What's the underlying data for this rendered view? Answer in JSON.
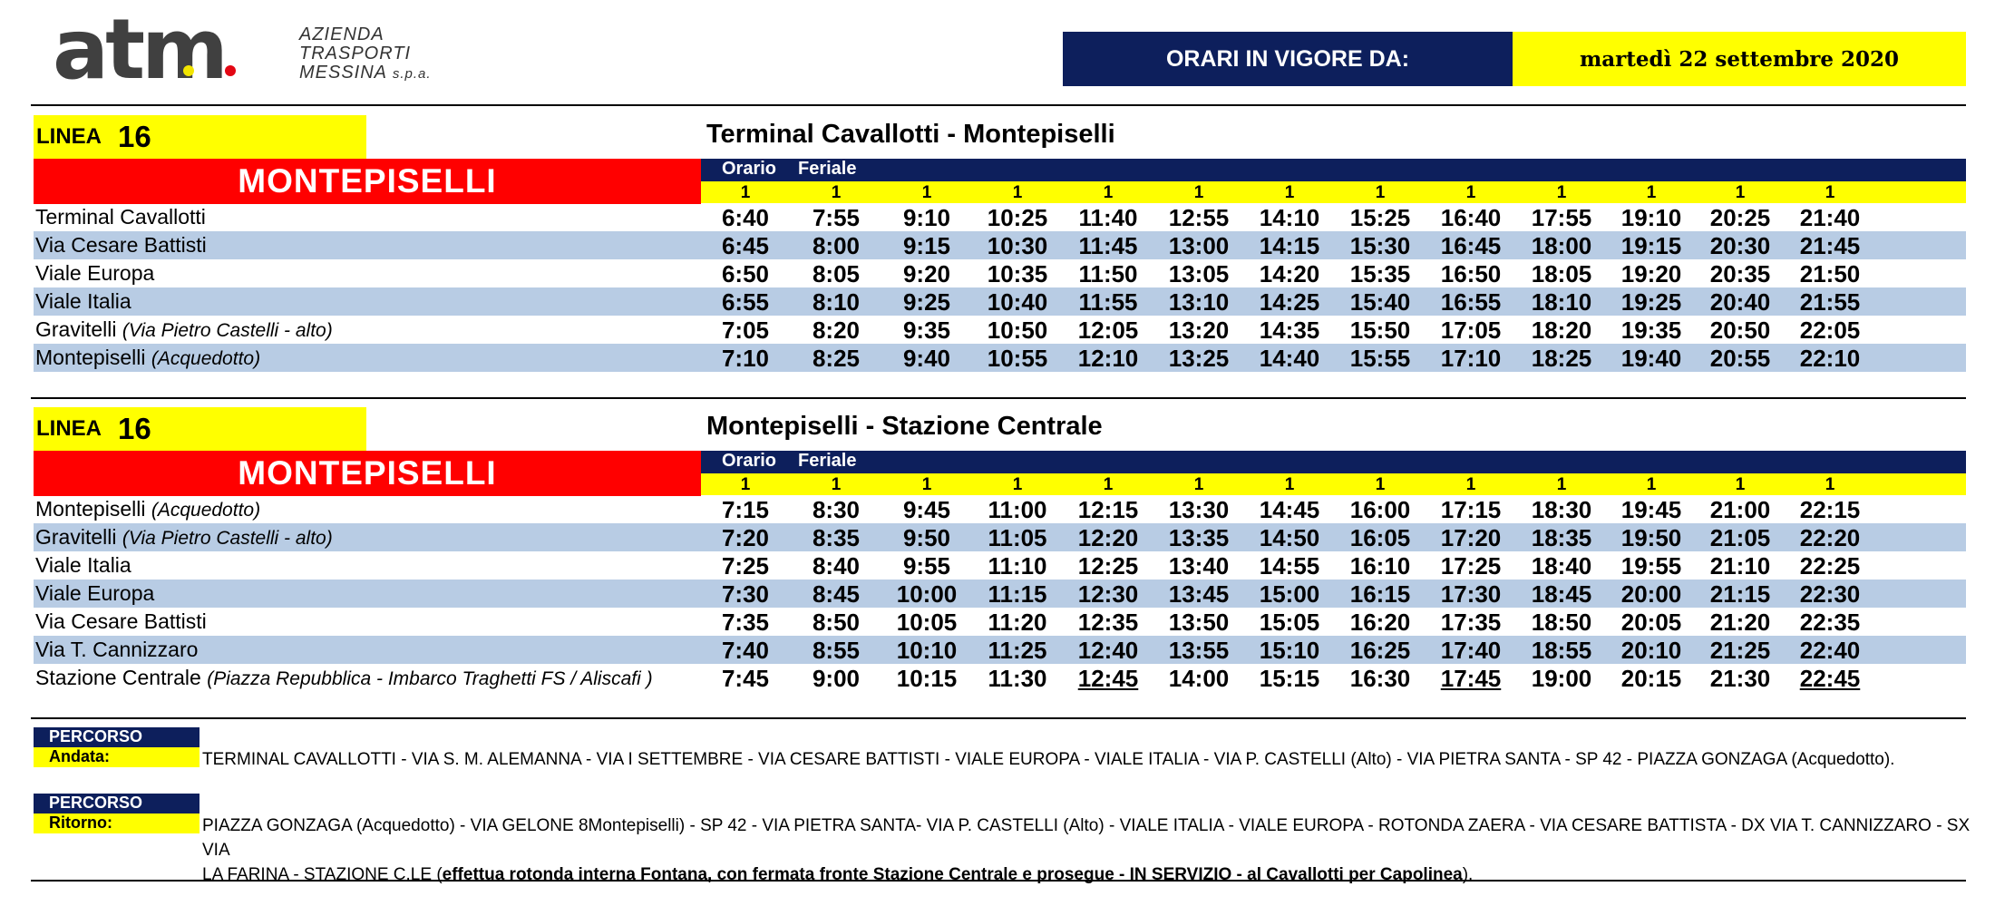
{
  "header": {
    "logo_word": "atm",
    "company_line1": "AZIENDA",
    "company_line2": "TRASPORTI",
    "company_line3": "MESSINA",
    "company_suffix": "s.p.a.",
    "validity_label": "ORARI IN VIGORE DA:",
    "validity_date": "martedì 22 settembre 2020",
    "colors": {
      "navy": "#0d1f5c",
      "yellow": "#ffff00",
      "red": "#ff0000",
      "row_alt": "#b8cce4"
    }
  },
  "sections": [
    {
      "linea_label": "LINEA",
      "linea_number": "16",
      "route_title": "Terminal Cavallotti - Montepiselli",
      "destination": "MONTEPISELLI",
      "orario_label": "Orario",
      "feriale_label": "Feriale",
      "trip_notes": [
        "1",
        "1",
        "1",
        "1",
        "1",
        "1",
        "1",
        "1",
        "1",
        "1",
        "1",
        "1",
        "1"
      ],
      "rows": [
        {
          "stop": "Terminal Cavallotti",
          "detail": "",
          "times": [
            "6:40",
            "7:55",
            "9:10",
            "10:25",
            "11:40",
            "12:55",
            "14:10",
            "15:25",
            "16:40",
            "17:55",
            "19:10",
            "20:25",
            "21:40"
          ]
        },
        {
          "stop": "Via Cesare Battisti",
          "detail": "",
          "times": [
            "6:45",
            "8:00",
            "9:15",
            "10:30",
            "11:45",
            "13:00",
            "14:15",
            "15:30",
            "16:45",
            "18:00",
            "19:15",
            "20:30",
            "21:45"
          ]
        },
        {
          "stop": "Viale Europa",
          "detail": "",
          "times": [
            "6:50",
            "8:05",
            "9:20",
            "10:35",
            "11:50",
            "13:05",
            "14:20",
            "15:35",
            "16:50",
            "18:05",
            "19:20",
            "20:35",
            "21:50"
          ]
        },
        {
          "stop": "Viale Italia",
          "detail": "",
          "times": [
            "6:55",
            "8:10",
            "9:25",
            "10:40",
            "11:55",
            "13:10",
            "14:25",
            "15:40",
            "16:55",
            "18:10",
            "19:25",
            "20:40",
            "21:55"
          ]
        },
        {
          "stop": "Gravitelli",
          "detail": "(Via Pietro Castelli - alto)",
          "times": [
            "7:05",
            "8:20",
            "9:35",
            "10:50",
            "12:05",
            "13:20",
            "14:35",
            "15:50",
            "17:05",
            "18:20",
            "19:35",
            "20:50",
            "22:05"
          ]
        },
        {
          "stop": "Montepiselli",
          "detail": "(Acquedotto)",
          "times": [
            "7:10",
            "8:25",
            "9:40",
            "10:55",
            "12:10",
            "13:25",
            "14:40",
            "15:55",
            "17:10",
            "18:25",
            "19:40",
            "20:55",
            "22:10"
          ]
        }
      ]
    },
    {
      "linea_label": "LINEA",
      "linea_number": "16",
      "route_title": "Montepiselli - Stazione Centrale",
      "destination": "MONTEPISELLI",
      "orario_label": "Orario",
      "feriale_label": "Feriale",
      "trip_notes": [
        "1",
        "1",
        "1",
        "1",
        "1",
        "1",
        "1",
        "1",
        "1",
        "1",
        "1",
        "1",
        "1"
      ],
      "rows": [
        {
          "stop": "Montepiselli",
          "detail": "(Acquedotto)",
          "times": [
            "7:15",
            "8:30",
            "9:45",
            "11:00",
            "12:15",
            "13:30",
            "14:45",
            "16:00",
            "17:15",
            "18:30",
            "19:45",
            "21:00",
            "22:15"
          ]
        },
        {
          "stop": "Gravitelli",
          "detail": "(Via Pietro Castelli - alto)",
          "times": [
            "7:20",
            "8:35",
            "9:50",
            "11:05",
            "12:20",
            "13:35",
            "14:50",
            "16:05",
            "17:20",
            "18:35",
            "19:50",
            "21:05",
            "22:20"
          ]
        },
        {
          "stop": "Viale Italia",
          "detail": "",
          "times": [
            "7:25",
            "8:40",
            "9:55",
            "11:10",
            "12:25",
            "13:40",
            "14:55",
            "16:10",
            "17:25",
            "18:40",
            "19:55",
            "21:10",
            "22:25"
          ]
        },
        {
          "stop": "Viale Europa",
          "detail": "",
          "times": [
            "7:30",
            "8:45",
            "10:00",
            "11:15",
            "12:30",
            "13:45",
            "15:00",
            "16:15",
            "17:30",
            "18:45",
            "20:00",
            "21:15",
            "22:30"
          ]
        },
        {
          "stop": "Via Cesare Battisti",
          "detail": "",
          "times": [
            "7:35",
            "8:50",
            "10:05",
            "11:20",
            "12:35",
            "13:50",
            "15:05",
            "16:20",
            "17:35",
            "18:50",
            "20:05",
            "21:20",
            "22:35"
          ]
        },
        {
          "stop": "Via T. Cannizzaro",
          "detail": "",
          "times": [
            "7:40",
            "8:55",
            "10:10",
            "11:25",
            "12:40",
            "13:55",
            "15:10",
            "16:25",
            "17:40",
            "18:55",
            "20:10",
            "21:25",
            "22:40"
          ]
        },
        {
          "stop": "Stazione Centrale",
          "detail": "(Piazza Repubblica - Imbarco Traghetti FS / Aliscafi )",
          "times": [
            "7:45",
            "9:00",
            "10:15",
            "11:30",
            "12:45",
            "14:00",
            "15:15",
            "16:30",
            "17:45",
            "19:00",
            "20:15",
            "21:30",
            "22:45"
          ],
          "underlined": [
            4,
            8,
            12
          ]
        }
      ]
    }
  ],
  "percorso": {
    "andata": {
      "head": "PERCORSO",
      "sub": "Andata:",
      "text": "TERMINAL CAVALLOTTI - VIA S. M. ALEMANNA - VIA I SETTEMBRE - VIA CESARE BATTISTI - VIALE EUROPA - VIALE ITALIA - VIA P. CASTELLI (Alto) - VIA PIETRA SANTA - SP 42 - PIAZZA GONZAGA (Acquedotto)."
    },
    "ritorno": {
      "head": "PERCORSO",
      "sub": "Ritorno:",
      "line1": "PIAZZA GONZAGA (Acquedotto) - VIA GELONE 8Montepiselli) - SP 42 - VIA PIETRA SANTA- VIA P. CASTELLI  (Alto) - VIALE ITALIA - VIALE EUROPA - ROTONDA ZAERA - VIA CESARE BATTISTA - DX VIA T. CANNIZZARO - SX VIA",
      "line2_start": "LA FARINA - STAZIONE C.LE (",
      "line2_bold": "effettua rotonda interna Fontana, con fermata fronte Stazione Centrale e prosegue - IN SERVIZIO - al Cavallotti per Capolinea",
      "line2_end": ")."
    }
  }
}
